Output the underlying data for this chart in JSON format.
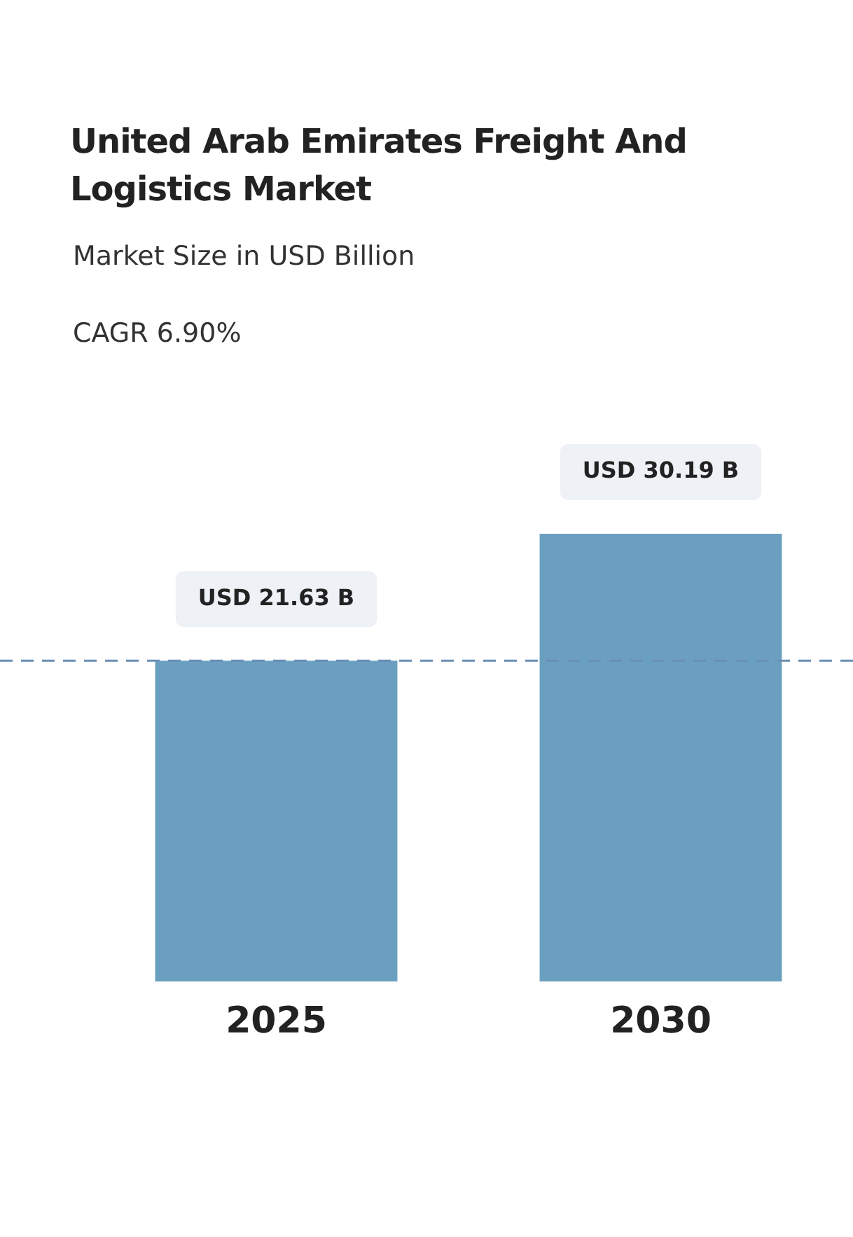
{
  "chart_data": {
    "type": "bar",
    "title": "United Arab Emirates Freight And Logistics Market",
    "subtitle": "Market Size in USD Billion",
    "annotations": [
      "CAGR 6.90%"
    ],
    "categories": [
      "2025",
      "2030"
    ],
    "series": [
      {
        "color": "#6b9fc0",
        "values": [
          21.63,
          30.19
        ],
        "value_labels": [
          "USD 21.63 B",
          "USD 30.19 B"
        ]
      }
    ],
    "ref_lines": [
      {
        "axis": "y",
        "value": 21.63,
        "color": "#6a8fb5",
        "line_style": "dashed"
      }
    ],
    "legend": false,
    "grid": false,
    "tick_labels": "x"
  }
}
